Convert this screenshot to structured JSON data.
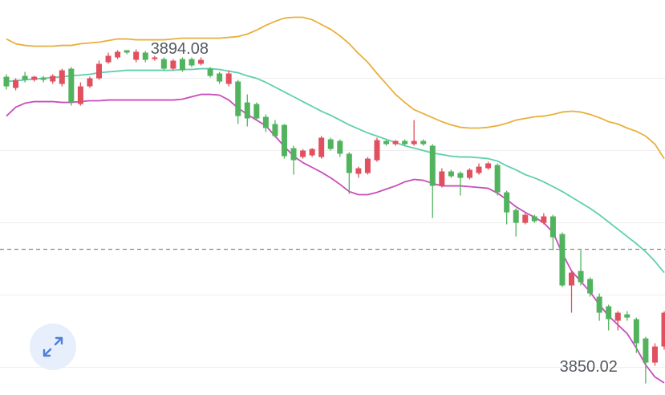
{
  "chart_data": {
    "type": "candlestick",
    "up_color": "#e0505f",
    "down_color": "#52b35e",
    "ylim": [
      3848.5,
      3900.6
    ],
    "yticks": [
      3890.27,
      3880.74,
      3871.21,
      3861.68,
      3852.15
    ],
    "grid": true,
    "reference_line": 3867.72,
    "open": [
      3890.48,
      3889.0,
      3890.59,
      3890.06,
      3890.38,
      3889.85,
      3889.53,
      3891.54,
      3886.88,
      3889.21,
      3890.27,
      3892.39,
      3893.03,
      3893.98,
      3892.71,
      3893.66,
      3892.81,
      3892.81,
      3891.54,
      3892.81,
      3892.81,
      3892.18,
      3891.54,
      3890.91,
      3889.53,
      3889.85,
      3887.09,
      3886.88,
      3885.19,
      3884.24,
      3884.13,
      3881.06,
      3879.89,
      3880.11,
      3879.89,
      3882.22,
      3882.01,
      3880.32,
      3877.67,
      3877.78,
      3879.47,
      3882.01,
      3881.59,
      3882.01,
      3881.59,
      3882.01,
      3881.38,
      3876.08,
      3877.99,
      3877.78,
      3877.14,
      3877.78,
      3878.41,
      3878.83,
      3875.23,
      3872.9,
      3871.21,
      3872.06,
      3871.21,
      3872.06,
      3869.73,
      3862.95,
      3864.86,
      3863.8,
      3861.47,
      3860.2,
      3858.29,
      3859.14,
      3858.5,
      3855.96,
      3852.78,
      3854.9
    ],
    "high": [
      3890.8,
      3890.27,
      3891.12,
      3890.59,
      3890.59,
      3890.8,
      3891.54,
      3891.75,
      3889.74,
      3890.48,
      3892.6,
      3893.66,
      3893.98,
      3893.98,
      3894.08,
      3893.87,
      3893.24,
      3893.03,
      3892.81,
      3893.03,
      3893.03,
      3893.03,
      3891.75,
      3891.12,
      3891.33,
      3890.06,
      3888.15,
      3887.09,
      3885.51,
      3884.76,
      3884.24,
      3881.38,
      3880.95,
      3881.06,
      3882.65,
      3882.44,
      3882.22,
      3880.53,
      3878.62,
      3879.89,
      3882.44,
      3882.12,
      3882.12,
      3882.22,
      3884.76,
      3882.22,
      3881.59,
      3878.41,
      3878.2,
      3877.99,
      3878.41,
      3879.05,
      3879.26,
      3879.05,
      3875.45,
      3873.12,
      3872.48,
      3872.27,
      3872.48,
      3872.27,
      3869.94,
      3864.86,
      3867.61,
      3864.01,
      3861.89,
      3860.41,
      3859.56,
      3859.56,
      3858.71,
      3856.17,
      3855.32,
      3859.56
    ],
    "low": [
      3888.79,
      3888.68,
      3889.74,
      3889.85,
      3889.74,
      3889.53,
      3889.21,
      3886.67,
      3886.67,
      3889.0,
      3890.06,
      3892.18,
      3892.81,
      3893.45,
      3892.39,
      3892.39,
      3892.6,
      3891.33,
      3891.33,
      3891.12,
      3891.75,
      3891.97,
      3890.38,
      3889.53,
      3889.21,
      3884.24,
      3883.92,
      3884.76,
      3883.18,
      3882.44,
      3879.68,
      3877.56,
      3879.68,
      3879.89,
      3879.68,
      3880.74,
      3879.89,
      3875.02,
      3877.14,
      3877.56,
      3879.26,
      3881.38,
      3881.38,
      3881.38,
      3881.38,
      3881.38,
      3871.85,
      3875.87,
      3877.14,
      3874.81,
      3876.93,
      3877.56,
      3878.2,
      3874.81,
      3871.0,
      3869.41,
      3871.0,
      3871.21,
      3871.0,
      3867.61,
      3862.74,
      3859.35,
      3862.95,
      3861.47,
      3858.29,
      3857.02,
      3857.02,
      3858.29,
      3854.05,
      3850.02,
      3852.36,
      3854.48
    ],
    "close": [
      3889.21,
      3890.06,
      3890.06,
      3890.48,
      3890.06,
      3890.59,
      3891.33,
      3887.09,
      3889.21,
      3890.27,
      3892.18,
      3893.24,
      3893.77,
      3893.66,
      3893.77,
      3892.71,
      3893.03,
      3891.54,
      3892.6,
      3891.33,
      3891.97,
      3892.71,
      3890.59,
      3889.85,
      3890.91,
      3885.29,
      3884.98,
      3884.98,
      3883.71,
      3882.65,
      3880.0,
      3879.47,
      3880.74,
      3880.95,
      3882.44,
      3880.95,
      3880.32,
      3877.78,
      3878.41,
      3879.68,
      3882.12,
      3881.59,
      3882.01,
      3881.59,
      3882.01,
      3881.59,
      3876.08,
      3877.99,
      3877.35,
      3877.14,
      3878.2,
      3878.62,
      3879.05,
      3875.23,
      3872.59,
      3871.21,
      3872.27,
      3871.42,
      3872.06,
      3869.3,
      3862.95,
      3864.64,
      3863.37,
      3861.89,
      3859.35,
      3858.5,
      3859.35,
      3858.71,
      3855.32,
      3852.78,
      3854.9,
      3859.35
    ],
    "series": [
      {
        "color": "#e8b03c",
        "values": [
          3895.46,
          3894.83,
          3894.61,
          3894.51,
          3894.51,
          3894.51,
          3894.61,
          3894.61,
          3894.83,
          3894.93,
          3895.04,
          3895.25,
          3895.46,
          3895.46,
          3895.35,
          3895.35,
          3895.35,
          3895.35,
          3895.46,
          3895.57,
          3895.57,
          3895.57,
          3895.57,
          3895.57,
          3895.67,
          3895.78,
          3896.1,
          3896.63,
          3897.26,
          3897.79,
          3898.21,
          3898.32,
          3898.32,
          3898.0,
          3897.37,
          3896.73,
          3895.88,
          3894.83,
          3893.55,
          3892.39,
          3890.91,
          3889.53,
          3888.15,
          3887.09,
          3886.14,
          3885.61,
          3885.08,
          3884.55,
          3884.13,
          3883.81,
          3883.71,
          3883.71,
          3883.81,
          3884.02,
          3884.34,
          3884.76,
          3884.98,
          3885.19,
          3885.29,
          3885.51,
          3885.82,
          3885.93,
          3885.82,
          3885.51,
          3885.08,
          3884.55,
          3884.24,
          3883.71,
          3883.28,
          3882.65,
          3881.59,
          3879.68
        ]
      },
      {
        "color": "#5fcfae",
        "values": [
          3889.85,
          3889.95,
          3890.06,
          3890.17,
          3890.27,
          3890.38,
          3890.48,
          3890.59,
          3890.7,
          3890.8,
          3891.01,
          3891.12,
          3891.22,
          3891.33,
          3891.33,
          3891.33,
          3891.33,
          3891.33,
          3891.33,
          3891.44,
          3891.44,
          3891.54,
          3891.54,
          3891.44,
          3891.22,
          3891.01,
          3890.59,
          3890.27,
          3889.74,
          3889.11,
          3888.47,
          3887.84,
          3887.2,
          3886.57,
          3885.93,
          3885.4,
          3884.76,
          3884.13,
          3883.6,
          3883.07,
          3882.65,
          3882.22,
          3881.8,
          3881.38,
          3881.06,
          3880.74,
          3880.42,
          3880.21,
          3880.0,
          3879.89,
          3879.89,
          3879.79,
          3879.68,
          3879.36,
          3878.73,
          3878.2,
          3877.56,
          3877.14,
          3876.61,
          3875.98,
          3875.34,
          3874.6,
          3873.86,
          3873.12,
          3872.27,
          3871.32,
          3870.36,
          3869.41,
          3868.46,
          3867.4,
          3866.13,
          3864.64
        ]
      },
      {
        "color": "#c84cbd",
        "values": [
          3885.29,
          3886.46,
          3886.99,
          3887.2,
          3887.2,
          3887.2,
          3887.09,
          3887.09,
          3887.2,
          3887.31,
          3887.31,
          3887.41,
          3887.41,
          3887.41,
          3887.41,
          3887.41,
          3887.41,
          3887.41,
          3887.41,
          3887.52,
          3887.84,
          3888.15,
          3888.15,
          3888.05,
          3887.41,
          3886.35,
          3885.51,
          3884.76,
          3884.02,
          3882.65,
          3881.27,
          3880.0,
          3879.15,
          3878.52,
          3877.88,
          3877.14,
          3876.29,
          3875.34,
          3874.92,
          3874.92,
          3875.23,
          3875.66,
          3876.08,
          3876.61,
          3876.93,
          3876.82,
          3876.4,
          3876.08,
          3876.08,
          3876.08,
          3875.98,
          3875.87,
          3875.76,
          3875.13,
          3874.28,
          3873.33,
          3872.59,
          3871.95,
          3871.21,
          3869.94,
          3867.19,
          3864.86,
          3863.48,
          3862.1,
          3860.41,
          3858.93,
          3857.76,
          3856.6,
          3854.69,
          3852.47,
          3850.88,
          3850.1
        ]
      }
    ]
  }
}
